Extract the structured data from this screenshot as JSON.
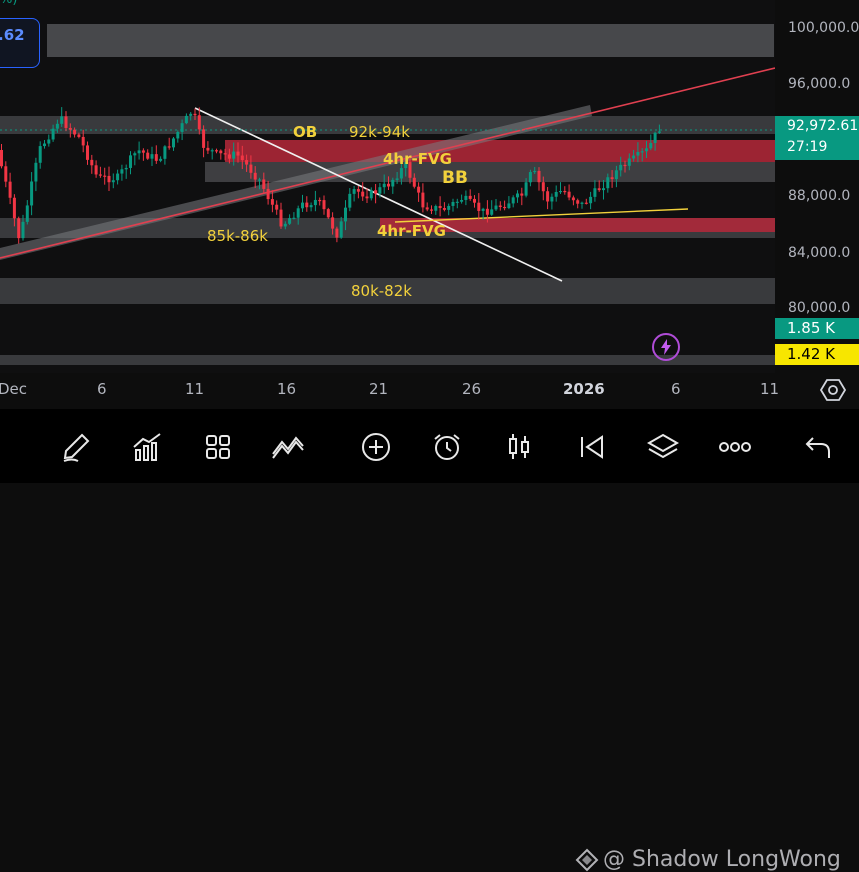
{
  "legend": {
    "partial_value": ".62",
    "partial_change": "%)"
  },
  "price_axis": {
    "ticks": [
      "100,000.0",
      "96,000.0",
      "92,972.61",
      "88,000.0",
      "84,000.0",
      "80,000.0"
    ],
    "current_price": "92,972.61",
    "countdown": "27:19",
    "volume_green": "1.85 K",
    "volume_yellow": "1.42 K"
  },
  "time_axis": [
    "Dec",
    "6",
    "11",
    "16",
    "21",
    "26",
    "2026",
    "6",
    "11"
  ],
  "annotations": {
    "ob": "OB",
    "range_top": "92k-94k",
    "fvg_upper": "4hr-FVG",
    "bb": "BB",
    "range_mid": "85k-86k",
    "fvg_lower": "4hr-FVG",
    "range_low": "80k-82k"
  },
  "toolbar": [
    "pencil-icon",
    "chart-indicators-icon",
    "grid-layout-icon",
    "patterns-icon",
    "add-icon",
    "alarm-clock-icon",
    "candlestick-icon",
    "replay-icon",
    "layers-icon",
    "more-icon",
    "undo-icon"
  ],
  "watermark": "@ Shadow LongWong",
  "colors": {
    "bull": "#089981",
    "bear": "#f23645",
    "zone_gray": "#5d5e62",
    "zone_red": "#b5283a",
    "label_yellow": "#f2d13c"
  }
}
